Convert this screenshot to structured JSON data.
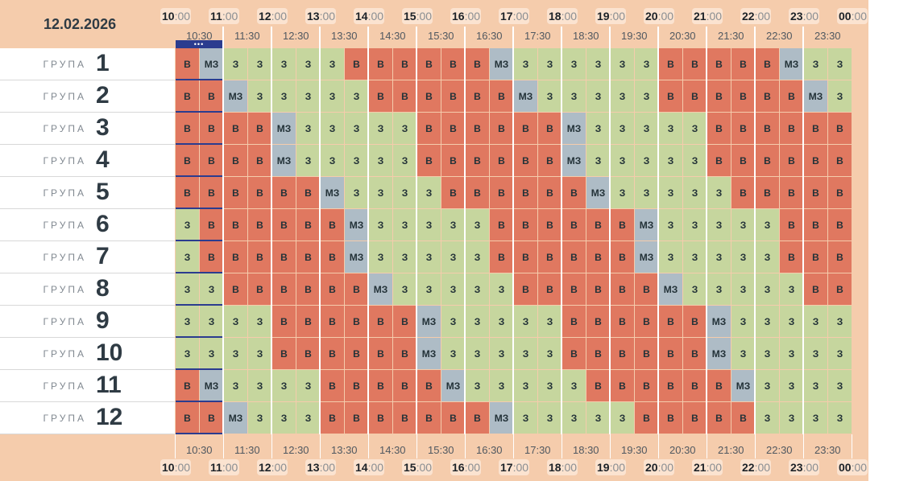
{
  "date": "12.02.2026",
  "group_word": "ГРУПА",
  "more_dots": "•••",
  "hours": [
    "10",
    "11",
    "12",
    "13",
    "14",
    "15",
    "16",
    "17",
    "18",
    "19",
    "20",
    "21",
    "22",
    "23",
    "00"
  ],
  "hour_suffix": ":00",
  "half_hours": [
    "10:30",
    "11:30",
    "12:30",
    "13:30",
    "14:30",
    "15:30",
    "16:30",
    "17:30",
    "18:30",
    "19:30",
    "20:30",
    "21:30",
    "22:30",
    "23:30"
  ],
  "status_colors": {
    "B": "#e07860",
    "З": "#c6d69e",
    "МЗ": "#aebcc6"
  },
  "groups": [
    {
      "number": "1",
      "slots": [
        "B",
        "МЗ",
        "З",
        "З",
        "З",
        "З",
        "З",
        "B",
        "B",
        "B",
        "B",
        "B",
        "B",
        "МЗ",
        "З",
        "З",
        "З",
        "З",
        "З",
        "З",
        "B",
        "B",
        "B",
        "B",
        "B",
        "МЗ",
        "З",
        "З"
      ]
    },
    {
      "number": "2",
      "slots": [
        "B",
        "B",
        "МЗ",
        "З",
        "З",
        "З",
        "З",
        "З",
        "B",
        "B",
        "B",
        "B",
        "B",
        "B",
        "МЗ",
        "З",
        "З",
        "З",
        "З",
        "З",
        "B",
        "B",
        "B",
        "B",
        "B",
        "B",
        "МЗ",
        "З"
      ]
    },
    {
      "number": "3",
      "slots": [
        "B",
        "B",
        "B",
        "B",
        "МЗ",
        "З",
        "З",
        "З",
        "З",
        "З",
        "B",
        "B",
        "B",
        "B",
        "B",
        "B",
        "МЗ",
        "З",
        "З",
        "З",
        "З",
        "З",
        "B",
        "B",
        "B",
        "B",
        "B",
        "B"
      ]
    },
    {
      "number": "4",
      "slots": [
        "B",
        "B",
        "B",
        "B",
        "МЗ",
        "З",
        "З",
        "З",
        "З",
        "З",
        "B",
        "B",
        "B",
        "B",
        "B",
        "B",
        "МЗ",
        "З",
        "З",
        "З",
        "З",
        "З",
        "B",
        "B",
        "B",
        "B",
        "B",
        "B"
      ]
    },
    {
      "number": "5",
      "slots": [
        "B",
        "B",
        "B",
        "B",
        "B",
        "B",
        "МЗ",
        "З",
        "З",
        "З",
        "З",
        "B",
        "B",
        "B",
        "B",
        "B",
        "B",
        "МЗ",
        "З",
        "З",
        "З",
        "З",
        "З",
        "B",
        "B",
        "B",
        "B",
        "B"
      ]
    },
    {
      "number": "6",
      "slots": [
        "З",
        "B",
        "B",
        "B",
        "B",
        "B",
        "B",
        "МЗ",
        "З",
        "З",
        "З",
        "З",
        "З",
        "B",
        "B",
        "B",
        "B",
        "B",
        "B",
        "МЗ",
        "З",
        "З",
        "З",
        "З",
        "З",
        "B",
        "B",
        "B"
      ]
    },
    {
      "number": "7",
      "slots": [
        "З",
        "B",
        "B",
        "B",
        "B",
        "B",
        "B",
        "МЗ",
        "З",
        "З",
        "З",
        "З",
        "З",
        "B",
        "B",
        "B",
        "B",
        "B",
        "B",
        "МЗ",
        "З",
        "З",
        "З",
        "З",
        "З",
        "B",
        "B",
        "B"
      ]
    },
    {
      "number": "8",
      "slots": [
        "З",
        "З",
        "B",
        "B",
        "B",
        "B",
        "B",
        "B",
        "МЗ",
        "З",
        "З",
        "З",
        "З",
        "З",
        "B",
        "B",
        "B",
        "B",
        "B",
        "B",
        "МЗ",
        "З",
        "З",
        "З",
        "З",
        "З",
        "B",
        "B"
      ]
    },
    {
      "number": "9",
      "slots": [
        "З",
        "З",
        "З",
        "З",
        "B",
        "B",
        "B",
        "B",
        "B",
        "B",
        "МЗ",
        "З",
        "З",
        "З",
        "З",
        "З",
        "B",
        "B",
        "B",
        "B",
        "B",
        "B",
        "МЗ",
        "З",
        "З",
        "З",
        "З",
        "З"
      ]
    },
    {
      "number": "10",
      "slots": [
        "З",
        "З",
        "З",
        "З",
        "B",
        "B",
        "B",
        "B",
        "B",
        "B",
        "МЗ",
        "З",
        "З",
        "З",
        "З",
        "З",
        "B",
        "B",
        "B",
        "B",
        "B",
        "B",
        "МЗ",
        "З",
        "З",
        "З",
        "З",
        "З"
      ]
    },
    {
      "number": "11",
      "slots": [
        "B",
        "МЗ",
        "З",
        "З",
        "З",
        "З",
        "B",
        "B",
        "B",
        "B",
        "B",
        "МЗ",
        "З",
        "З",
        "З",
        "З",
        "З",
        "B",
        "B",
        "B",
        "B",
        "B",
        "B",
        "МЗ",
        "З",
        "З",
        "З",
        "З"
      ]
    },
    {
      "number": "12",
      "slots": [
        "B",
        "B",
        "МЗ",
        "З",
        "З",
        "З",
        "B",
        "B",
        "B",
        "B",
        "B",
        "B",
        "B",
        "МЗ",
        "З",
        "З",
        "З",
        "З",
        "З",
        "B",
        "B",
        "B",
        "B",
        "B",
        "З",
        "З",
        "З",
        "З"
      ]
    }
  ]
}
